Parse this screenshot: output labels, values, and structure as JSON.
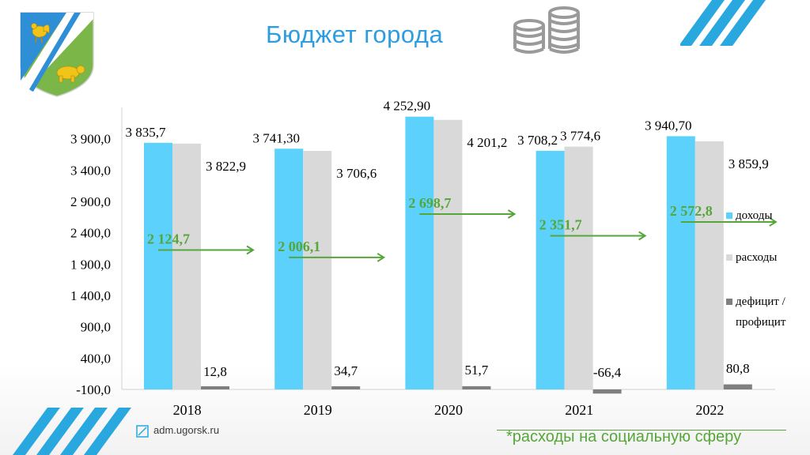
{
  "title": "Бюджет города",
  "footer": {
    "url": "adm.ugorsk.ru",
    "social_note": "*расходы на социальную сферу"
  },
  "colors": {
    "title": "#2d9de0",
    "income": "#5cd1fb",
    "expense": "#d9d9d9",
    "balance": "#7f7f7f",
    "social": "#56a63a",
    "stripes": "#29a8e0"
  },
  "icons": [
    "coat-of-arms-icon",
    "coins-icon",
    "link-icon"
  ],
  "chart_data": {
    "type": "bar",
    "categories": [
      "2018",
      "2019",
      "2020",
      "2021",
      "2022"
    ],
    "ylim": [
      -100,
      4400
    ],
    "y_ticks": [
      "3 900,0",
      "3 400,0",
      "2 900,0",
      "2 400,0",
      "1 900,0",
      "1 400,0",
      "900,0",
      "400,0",
      "-100,0"
    ],
    "y_tick_values": [
      3900,
      3400,
      2900,
      2400,
      1900,
      1400,
      900,
      400,
      -100
    ],
    "series": [
      {
        "name": "доходы",
        "values": [
          3835.7,
          3741.3,
          4252.9,
          3708.2,
          3940.7
        ],
        "labels": [
          "3 835,7",
          "3 741,30",
          "4 252,90",
          "3 708,2",
          "3 940,70"
        ]
      },
      {
        "name": "расходы",
        "values": [
          3822.9,
          3706.6,
          4201.2,
          3774.6,
          3859.9
        ],
        "labels": [
          "3 822,9",
          "3 706,6",
          "4 201,2",
          "3 774,6",
          "3 859,9"
        ]
      },
      {
        "name": "дефицит / профицит",
        "values": [
          12.8,
          34.7,
          51.7,
          -66.4,
          80.8
        ],
        "labels": [
          "12,8",
          "34,7",
          "51,7",
          "-66,4",
          "80,8"
        ]
      }
    ],
    "social_spending": {
      "values": [
        2124.7,
        2006.1,
        2698.7,
        2351.7,
        2572.8
      ],
      "labels": [
        "2 124,7",
        "2 006,1",
        "2 698,7",
        "2 351,7",
        "2 572,8"
      ]
    },
    "legend": [
      "доходы",
      "расходы",
      "дефицит /",
      "профицит"
    ],
    "legend_position": "right",
    "grid": false
  }
}
